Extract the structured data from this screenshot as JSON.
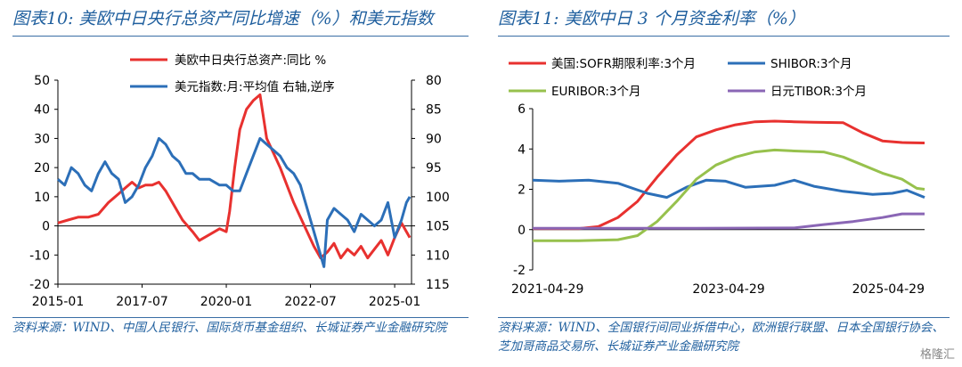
{
  "left": {
    "title": "图表10:  美欧中日央行总资产同比增速（%）和美元指数",
    "source": "资料来源：WIND、中国人民银行、国际货币基金组织、长城证券产业金融研究院"
  },
  "right": {
    "title": "图表11:  美欧中日 3 个月资金利率（%）",
    "source": "资料来源：WIND、全国银行间同业拆借中心，欧洲银行联盟、日本全国银行协会、芝加哥商品交易所、长城证券产业金融研究院"
  },
  "watermark": "格隆汇",
  "chart_data": [
    {
      "type": "line",
      "title": "",
      "x_ticks": [
        "2015-01",
        "2017-07",
        "2020-01",
        "2022-07",
        "2025-01"
      ],
      "x_range": [
        2015.0,
        2025.5
      ],
      "y_left": {
        "ticks": [
          "50",
          "40",
          "30",
          "20",
          "10",
          "0",
          "-10",
          "-20"
        ],
        "range": [
          -20,
          50
        ]
      },
      "y_right": {
        "ticks": [
          "80",
          "85",
          "90",
          "95",
          "100",
          "105",
          "110",
          "115"
        ],
        "range": [
          80,
          115
        ],
        "inverted": true
      },
      "legend_position": "top",
      "series": [
        {
          "name": "美欧中日央行总资产:同比 %",
          "axis": "left",
          "color": "#e8312f",
          "points": [
            [
              2015.0,
              1
            ],
            [
              2015.3,
              2
            ],
            [
              2015.6,
              3
            ],
            [
              2015.9,
              3
            ],
            [
              2016.2,
              4
            ],
            [
              2016.5,
              8
            ],
            [
              2016.8,
              11
            ],
            [
              2017.0,
              13
            ],
            [
              2017.2,
              15
            ],
            [
              2017.4,
              13
            ],
            [
              2017.6,
              14
            ],
            [
              2017.8,
              14
            ],
            [
              2018.0,
              15
            ],
            [
              2018.2,
              12
            ],
            [
              2018.5,
              6
            ],
            [
              2018.7,
              2
            ],
            [
              2019.0,
              -2
            ],
            [
              2019.2,
              -5
            ],
            [
              2019.5,
              -3
            ],
            [
              2019.8,
              -1
            ],
            [
              2020.0,
              -2
            ],
            [
              2020.1,
              5
            ],
            [
              2020.25,
              20
            ],
            [
              2020.4,
              33
            ],
            [
              2020.6,
              40
            ],
            [
              2020.8,
              43
            ],
            [
              2021.0,
              45
            ],
            [
              2021.2,
              30
            ],
            [
              2021.4,
              25
            ],
            [
              2021.6,
              20
            ],
            [
              2021.8,
              14
            ],
            [
              2022.0,
              8
            ],
            [
              2022.2,
              3
            ],
            [
              2022.4,
              -2
            ],
            [
              2022.6,
              -7
            ],
            [
              2022.8,
              -11
            ],
            [
              2023.0,
              -9
            ],
            [
              2023.2,
              -6
            ],
            [
              2023.4,
              -11
            ],
            [
              2023.6,
              -8
            ],
            [
              2023.8,
              -10
            ],
            [
              2024.0,
              -7
            ],
            [
              2024.2,
              -11
            ],
            [
              2024.4,
              -8
            ],
            [
              2024.6,
              -5
            ],
            [
              2024.8,
              -10
            ],
            [
              2025.0,
              -4
            ],
            [
              2025.2,
              1
            ],
            [
              2025.35,
              -2
            ],
            [
              2025.45,
              -4
            ]
          ]
        },
        {
          "name": "美元指数:月:平均值 右轴,逆序",
          "axis": "right",
          "color": "#2c6fb8",
          "points": [
            [
              2015.0,
              97
            ],
            [
              2015.2,
              98
            ],
            [
              2015.4,
              95
            ],
            [
              2015.6,
              96
            ],
            [
              2015.8,
              98
            ],
            [
              2016.0,
              99
            ],
            [
              2016.2,
              96
            ],
            [
              2016.4,
              94
            ],
            [
              2016.6,
              96
            ],
            [
              2016.8,
              97
            ],
            [
              2017.0,
              101
            ],
            [
              2017.2,
              100
            ],
            [
              2017.4,
              98
            ],
            [
              2017.6,
              95
            ],
            [
              2017.8,
              93
            ],
            [
              2018.0,
              90
            ],
            [
              2018.2,
              91
            ],
            [
              2018.4,
              93
            ],
            [
              2018.6,
              94
            ],
            [
              2018.8,
              96
            ],
            [
              2019.0,
              96
            ],
            [
              2019.2,
              97
            ],
            [
              2019.5,
              97
            ],
            [
              2019.8,
              98
            ],
            [
              2020.0,
              98
            ],
            [
              2020.2,
              99
            ],
            [
              2020.4,
              99
            ],
            [
              2020.6,
              96
            ],
            [
              2020.8,
              93
            ],
            [
              2021.0,
              90
            ],
            [
              2021.2,
              91
            ],
            [
              2021.4,
              92
            ],
            [
              2021.6,
              93
            ],
            [
              2021.8,
              95
            ],
            [
              2022.0,
              96
            ],
            [
              2022.2,
              98
            ],
            [
              2022.4,
              102
            ],
            [
              2022.6,
              106
            ],
            [
              2022.8,
              110
            ],
            [
              2022.9,
              112
            ],
            [
              2023.0,
              104
            ],
            [
              2023.2,
              102
            ],
            [
              2023.4,
              103
            ],
            [
              2023.6,
              104
            ],
            [
              2023.8,
              106
            ],
            [
              2024.0,
              103
            ],
            [
              2024.2,
              104
            ],
            [
              2024.4,
              105
            ],
            [
              2024.6,
              104
            ],
            [
              2024.8,
              101
            ],
            [
              2025.0,
              107
            ],
            [
              2025.2,
              104
            ],
            [
              2025.35,
              101
            ],
            [
              2025.45,
              100
            ]
          ]
        }
      ]
    },
    {
      "type": "line",
      "title": "",
      "x_ticks": [
        "2021-04-29",
        "2023-04-29",
        "2025-04-29"
      ],
      "x_range": [
        2021.33,
        2025.33
      ],
      "y": {
        "ticks": [
          "6",
          "4",
          "2",
          "0",
          "-2"
        ],
        "range": [
          -2,
          6
        ]
      },
      "legend_position": "top",
      "series": [
        {
          "name": "美国:SOFR期限利率:3个月",
          "color": "#e8312f",
          "points": [
            [
              2021.33,
              0.05
            ],
            [
              2021.8,
              0.05
            ],
            [
              2022.0,
              0.15
            ],
            [
              2022.2,
              0.6
            ],
            [
              2022.4,
              1.4
            ],
            [
              2022.6,
              2.6
            ],
            [
              2022.8,
              3.7
            ],
            [
              2023.0,
              4.6
            ],
            [
              2023.2,
              4.95
            ],
            [
              2023.4,
              5.2
            ],
            [
              2023.6,
              5.35
            ],
            [
              2023.8,
              5.38
            ],
            [
              2024.0,
              5.35
            ],
            [
              2024.2,
              5.33
            ],
            [
              2024.5,
              5.3
            ],
            [
              2024.7,
              4.8
            ],
            [
              2024.9,
              4.4
            ],
            [
              2025.1,
              4.32
            ],
            [
              2025.33,
              4.3
            ]
          ]
        },
        {
          "name": "SHIBOR:3个月",
          "color": "#2c6fb8",
          "points": [
            [
              2021.33,
              2.45
            ],
            [
              2021.6,
              2.4
            ],
            [
              2021.9,
              2.45
            ],
            [
              2022.2,
              2.3
            ],
            [
              2022.5,
              1.8
            ],
            [
              2022.7,
              1.6
            ],
            [
              2022.9,
              2.1
            ],
            [
              2023.1,
              2.45
            ],
            [
              2023.3,
              2.4
            ],
            [
              2023.5,
              2.1
            ],
            [
              2023.8,
              2.2
            ],
            [
              2024.0,
              2.45
            ],
            [
              2024.2,
              2.15
            ],
            [
              2024.5,
              1.9
            ],
            [
              2024.8,
              1.75
            ],
            [
              2025.0,
              1.8
            ],
            [
              2025.15,
              1.95
            ],
            [
              2025.33,
              1.6
            ]
          ]
        },
        {
          "name": "EURIBOR:3个月",
          "color": "#97c14d",
          "points": [
            [
              2021.33,
              -0.55
            ],
            [
              2021.8,
              -0.55
            ],
            [
              2022.2,
              -0.5
            ],
            [
              2022.4,
              -0.3
            ],
            [
              2022.6,
              0.4
            ],
            [
              2022.8,
              1.4
            ],
            [
              2023.0,
              2.5
            ],
            [
              2023.2,
              3.2
            ],
            [
              2023.4,
              3.6
            ],
            [
              2023.6,
              3.85
            ],
            [
              2023.8,
              3.95
            ],
            [
              2024.0,
              3.9
            ],
            [
              2024.3,
              3.85
            ],
            [
              2024.5,
              3.6
            ],
            [
              2024.7,
              3.2
            ],
            [
              2024.9,
              2.8
            ],
            [
              2025.1,
              2.5
            ],
            [
              2025.25,
              2.05
            ],
            [
              2025.33,
              2.0
            ]
          ]
        },
        {
          "name": "日元TIBOR:3个月",
          "color": "#8a66b5",
          "points": [
            [
              2021.33,
              0.07
            ],
            [
              2023.0,
              0.07
            ],
            [
              2024.0,
              0.08
            ],
            [
              2024.3,
              0.25
            ],
            [
              2024.6,
              0.4
            ],
            [
              2024.9,
              0.6
            ],
            [
              2025.1,
              0.78
            ],
            [
              2025.33,
              0.78
            ]
          ]
        }
      ]
    }
  ]
}
